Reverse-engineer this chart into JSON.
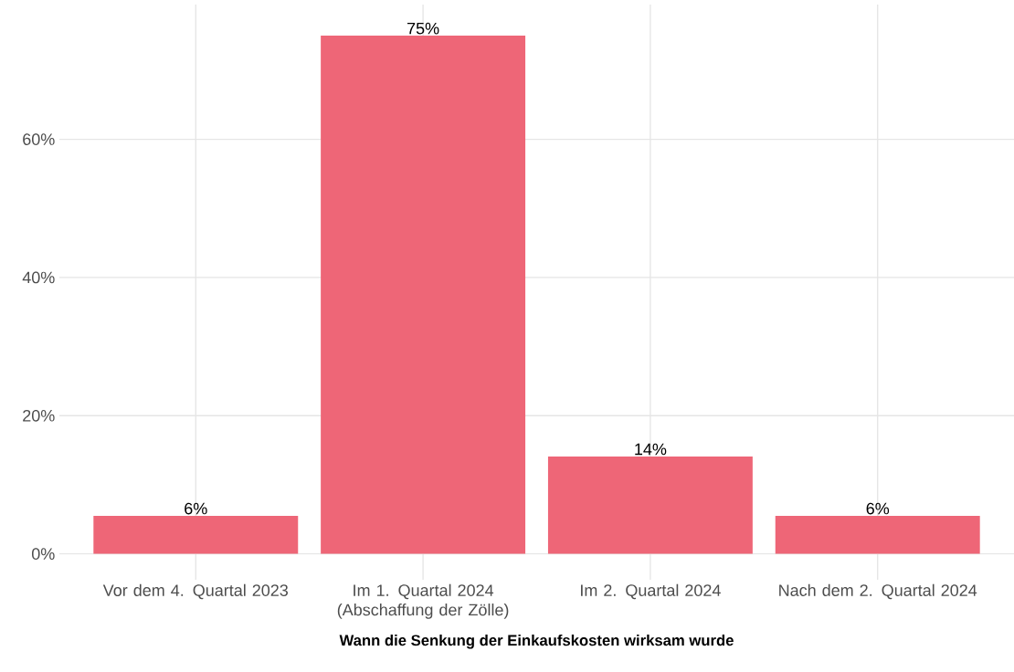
{
  "chart_data": {
    "type": "bar",
    "xlabel": "Wann die Senkung der Einkaufskosten wirksam wurde",
    "categories": [
      "Vor dem 4. Quartal 2023",
      "Im 1. Quartal 2024 (Abschaffung der Zölle)",
      "Im 2. Quartal 2024",
      "Nach dem 2. Quartal 2024"
    ],
    "values": [
      5.5,
      75,
      14.1,
      5.5
    ],
    "value_labels": [
      "6%",
      "75%",
      "14%",
      "6%"
    ],
    "color": "#ee6677",
    "ylim": [
      -3.75,
      79.5
    ],
    "yticks": [
      {
        "value": 0,
        "label": "0%"
      },
      {
        "value": 20,
        "label": "20%"
      },
      {
        "value": 40,
        "label": "40%"
      },
      {
        "value": 60,
        "label": "60%"
      }
    ],
    "grid": true
  }
}
